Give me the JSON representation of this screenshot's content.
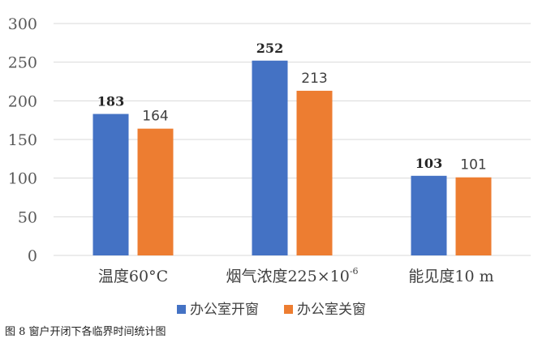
{
  "chart_data": {
    "type": "bar",
    "categories": [
      "温度60°C",
      "烟气浓度225×10",
      "能见度10 m"
    ],
    "category_superscripts": [
      "",
      "-6",
      ""
    ],
    "series": [
      {
        "name": "办公室开窗",
        "values": [
          183,
          252,
          103
        ],
        "color": "#4472c4"
      },
      {
        "name": "办公室关窗",
        "values": [
          164,
          213,
          101
        ],
        "color": "#ed7d31"
      }
    ],
    "ylim": [
      0,
      300
    ],
    "yticks": [
      0,
      50,
      100,
      150,
      200,
      250,
      300
    ],
    "grid": true,
    "legend": "bottom",
    "data_labels": true
  },
  "caption": "图 8  窗户开闭下各临界时间统计图"
}
